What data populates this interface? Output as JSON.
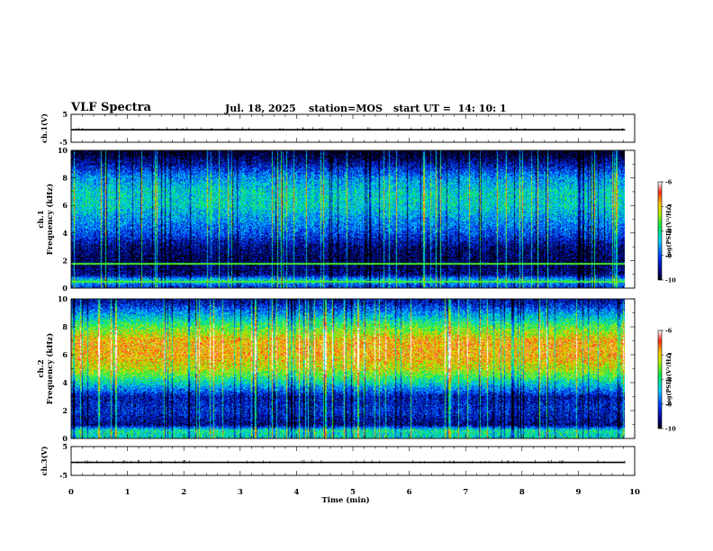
{
  "header": {
    "title": "VLF Spectra",
    "date": "Jul. 18, 2025",
    "station": "station=MOS",
    "start_ut": "start UT =  14: 10: 1"
  },
  "chart_data": [
    {
      "type": "line",
      "title": "",
      "ylabel": "ch.1(V)",
      "xlim": [
        0,
        10
      ],
      "ylim": [
        -5,
        5
      ],
      "yticks": [
        "5",
        "-5"
      ],
      "series": [
        {
          "values": [
            [
              0,
              -0.5
            ],
            [
              9.83,
              -0.5
            ]
          ]
        }
      ]
    },
    {
      "type": "heatmap",
      "ylabel": "ch.1 Frequency (kHz)",
      "xlim": [
        0,
        9.83
      ],
      "ylim": [
        0,
        10
      ],
      "yticks": [
        "0",
        "2",
        "4",
        "6",
        "8",
        "10"
      ],
      "colorbar": {
        "label": "log(PSD)(V²/Hz)",
        "range": [
          -10,
          -6
        ],
        "ticks": [
          "-6",
          "-7",
          "-8",
          "-9",
          "-10"
        ]
      },
      "profile": [
        {
          "f": 0.2,
          "level": -9.0
        },
        {
          "f": 0.6,
          "level": -8.2
        },
        {
          "f": 1.0,
          "level": -9.6
        },
        {
          "f": 2.0,
          "level": -9.8
        },
        {
          "f": 3.0,
          "level": -9.6
        },
        {
          "f": 4.0,
          "level": -9.0
        },
        {
          "f": 5.0,
          "level": -8.6
        },
        {
          "f": 6.0,
          "level": -8.2
        },
        {
          "f": 7.0,
          "level": -8.2
        },
        {
          "f": 8.0,
          "level": -8.6
        },
        {
          "f": 9.0,
          "level": -9.4
        },
        {
          "f": 9.8,
          "level": -10.0
        }
      ],
      "lines_khz": [
        0.5,
        1.8
      ]
    },
    {
      "type": "heatmap",
      "ylabel": "ch.2 Frequency (kHz)",
      "xlim": [
        0,
        9.83
      ],
      "ylim": [
        0,
        10
      ],
      "yticks": [
        "0",
        "2",
        "4",
        "6",
        "8",
        "10"
      ],
      "colorbar": {
        "label": "log(PSD)(V²/Hz)",
        "range": [
          -10,
          -6
        ],
        "ticks": [
          "-6",
          "-7",
          "-8",
          "-9",
          "-10"
        ]
      },
      "profile": [
        {
          "f": 0.2,
          "level": -8.2
        },
        {
          "f": 0.6,
          "level": -8.0
        },
        {
          "f": 1.0,
          "level": -9.6
        },
        {
          "f": 2.0,
          "level": -9.2
        },
        {
          "f": 3.0,
          "level": -9.4
        },
        {
          "f": 4.0,
          "level": -8.2
        },
        {
          "f": 5.0,
          "level": -7.2
        },
        {
          "f": 6.0,
          "level": -6.8
        },
        {
          "f": 7.0,
          "level": -6.8
        },
        {
          "f": 8.0,
          "level": -7.6
        },
        {
          "f": 9.0,
          "level": -8.6
        },
        {
          "f": 9.8,
          "level": -9.4
        }
      ],
      "lines_khz": []
    },
    {
      "type": "line",
      "ylabel": "ch.3(V)",
      "xlim": [
        0,
        10
      ],
      "ylim": [
        -5,
        5
      ],
      "yticks": [
        "5",
        "-5"
      ],
      "series": [
        {
          "values": [
            [
              0,
              -0.5
            ],
            [
              9.83,
              -0.5
            ]
          ]
        }
      ]
    }
  ],
  "xaxis": {
    "label": "Time (min)",
    "ticks": [
      "0",
      "1",
      "2",
      "3",
      "4",
      "5",
      "6",
      "7",
      "8",
      "9",
      "10"
    ],
    "range": [
      0,
      10
    ]
  }
}
